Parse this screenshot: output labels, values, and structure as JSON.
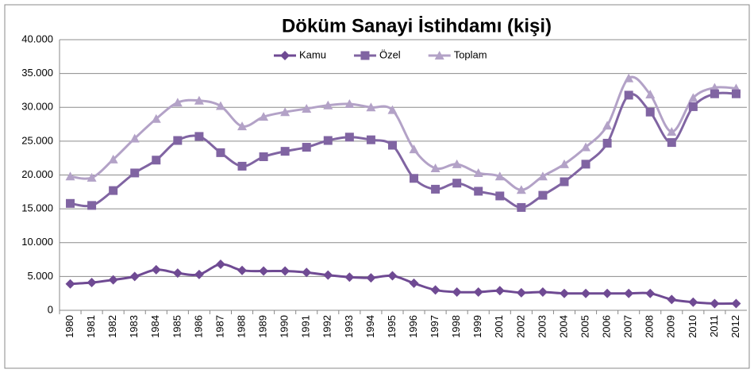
{
  "chart_data": {
    "type": "line",
    "title": "Döküm Sanayi İstihdamı    (kişi)",
    "categories": [
      "1980",
      "1981",
      "1982",
      "1983",
      "1984",
      "1985",
      "1986",
      "1987",
      "1988",
      "1989",
      "1990",
      "1991",
      "1992",
      "1993",
      "1994",
      "1995",
      "1996",
      "1997",
      "1998",
      "1999",
      "2001",
      "2002",
      "2003",
      "2004",
      "2005",
      "2006",
      "2007",
      "2008",
      "2009",
      "2010",
      "2011",
      "2012"
    ],
    "series": [
      {
        "name": "Kamu",
        "color": "#6f4a93",
        "marker": "diamond",
        "values": [
          3900,
          4100,
          4500,
          5000,
          6000,
          5500,
          5300,
          6800,
          5900,
          5800,
          5800,
          5600,
          5200,
          4900,
          4800,
          5100,
          4000,
          3000,
          2700,
          2700,
          2900,
          2600,
          2700,
          2500,
          2500,
          2500,
          2500,
          2500,
          1600,
          1200,
          1000,
          1000
        ]
      },
      {
        "name": "Özel",
        "color": "#8064a2",
        "marker": "square",
        "values": [
          15800,
          15500,
          17700,
          20300,
          22200,
          25100,
          25700,
          23300,
          21300,
          22700,
          23500,
          24100,
          25100,
          25600,
          25200,
          24400,
          19500,
          17900,
          18800,
          17600,
          16900,
          15200,
          17000,
          19000,
          21600,
          24700,
          31800,
          29300,
          24800,
          30100,
          32000,
          32000
        ]
      },
      {
        "name": "Toplam",
        "color": "#b3a2c7",
        "marker": "triangle",
        "values": [
          19800,
          19600,
          22300,
          25400,
          28300,
          30700,
          31000,
          30200,
          27200,
          28600,
          29300,
          29800,
          30300,
          30500,
          30000,
          29600,
          23800,
          21000,
          21600,
          20300,
          19800,
          17800,
          19800,
          21600,
          24100,
          27300,
          34300,
          31900,
          26400,
          31400,
          32900,
          32800
        ]
      }
    ],
    "ylim": [
      0,
      40000
    ],
    "yticks": [
      0,
      {
        "value": 5000,
        "label": "5.000"
      },
      {
        "value": 10000,
        "label": "10.000"
      },
      {
        "value": 15000,
        "label": "15.000"
      },
      {
        "value": 20000,
        "label": "20.000"
      },
      {
        "value": 25000,
        "label": "25.000"
      },
      {
        "value": 30000,
        "label": "30.000"
      },
      {
        "value": 35000,
        "label": "35.000"
      },
      {
        "value": 40000,
        "label": "40.000"
      }
    ],
    "grid": true,
    "legend": "top"
  }
}
